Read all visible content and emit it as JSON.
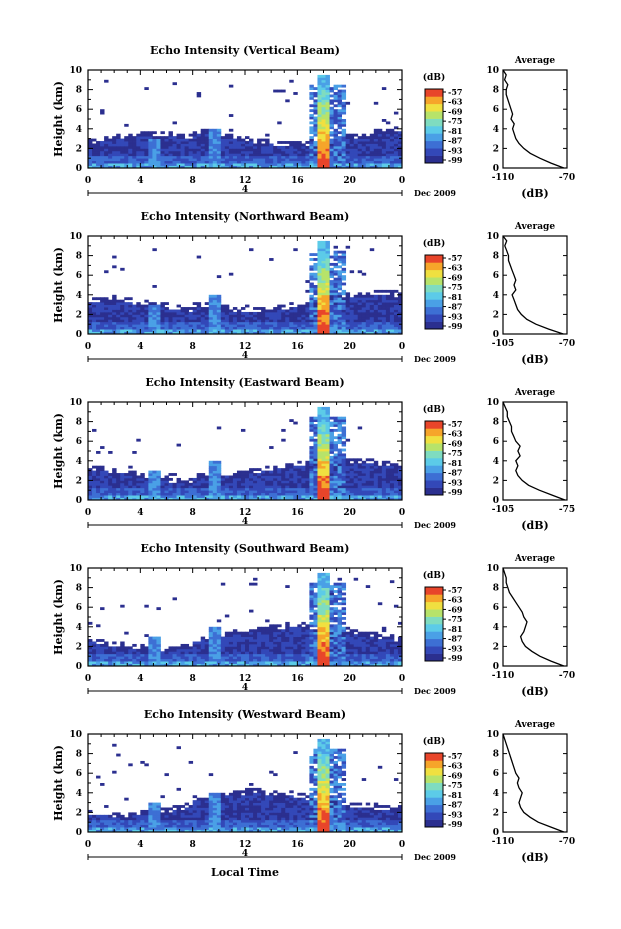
{
  "chart_data": [
    {
      "type": "heatmap",
      "title": "Echo Intensity (Vertical Beam)",
      "ylabel": "Height (km)",
      "xlabel": "",
      "x_ticks": [
        "0",
        "4",
        "8",
        "12",
        "16",
        "20",
        "0"
      ],
      "y_ticks": [
        "0",
        "2",
        "4",
        "6",
        "8",
        "10"
      ],
      "xlim": [
        0,
        24
      ],
      "ylim": [
        0,
        10
      ],
      "date_marker": "4",
      "date_label": "Dec 2009",
      "colorbar": {
        "unit": "(dB)",
        "ticks": [
          "-57",
          "-63",
          "-69",
          "-75",
          "-81",
          "-87",
          "-93",
          "-99"
        ]
      },
      "profile": {
        "title": "Average",
        "xlabel": "(dB)",
        "x_ticks": [
          "-110",
          "-70"
        ],
        "xlim": [
          -110,
          -70
        ],
        "y_ticks": [
          "0",
          "2",
          "4",
          "6",
          "8",
          "10"
        ],
        "heights": [
          0,
          0.5,
          1,
          1.5,
          2,
          2.5,
          3,
          3.5,
          4,
          4.5,
          5,
          5.5,
          6,
          6.5,
          7,
          7.5,
          8,
          8.5,
          9,
          9.5,
          10
        ],
        "values": [
          -72,
          -80,
          -87,
          -93,
          -97,
          -100,
          -102,
          -103,
          -104,
          -103,
          -105,
          -104,
          -105,
          -106,
          -107,
          -108,
          -108,
          -107,
          -109,
          -108,
          -110
        ]
      }
    },
    {
      "type": "heatmap",
      "title": "Echo Intensity (Northward Beam)",
      "ylabel": "Height (km)",
      "xlabel": "",
      "x_ticks": [
        "0",
        "4",
        "8",
        "12",
        "16",
        "20",
        "0"
      ],
      "y_ticks": [
        "0",
        "2",
        "4",
        "6",
        "8",
        "10"
      ],
      "xlim": [
        0,
        24
      ],
      "ylim": [
        0,
        10
      ],
      "date_marker": "4",
      "date_label": "Dec 2009",
      "colorbar": {
        "unit": "(dB)",
        "ticks": [
          "-57",
          "-63",
          "-69",
          "-75",
          "-81",
          "-87",
          "-93",
          "-99"
        ]
      },
      "profile": {
        "title": "Average",
        "xlabel": "(dB)",
        "x_ticks": [
          "-105",
          "-70"
        ],
        "xlim": [
          -105,
          -70
        ],
        "y_ticks": [
          "0",
          "2",
          "4",
          "6",
          "8",
          "10"
        ],
        "heights": [
          0,
          0.5,
          1,
          1.5,
          2,
          2.5,
          3,
          3.5,
          4,
          4.5,
          5,
          5.5,
          6,
          6.5,
          7,
          7.5,
          8,
          8.5,
          9,
          9.5,
          10
        ],
        "values": [
          -72,
          -80,
          -87,
          -92,
          -95,
          -97,
          -98,
          -99,
          -100,
          -98,
          -99,
          -98,
          -99,
          -100,
          -101,
          -102,
          -102,
          -103,
          -104,
          -103,
          -105
        ]
      }
    },
    {
      "type": "heatmap",
      "title": "Echo Intensity (Eastward Beam)",
      "ylabel": "Height (km)",
      "xlabel": "",
      "x_ticks": [
        "0",
        "4",
        "8",
        "12",
        "16",
        "20",
        "0"
      ],
      "y_ticks": [
        "0",
        "2",
        "4",
        "6",
        "8",
        "10"
      ],
      "xlim": [
        0,
        24
      ],
      "ylim": [
        0,
        10
      ],
      "date_marker": "4",
      "date_label": "Dec 2009",
      "colorbar": {
        "unit": "(dB)",
        "ticks": [
          "-57",
          "-63",
          "-69",
          "-75",
          "-81",
          "-87",
          "-93",
          "-99"
        ]
      },
      "profile": {
        "title": "Average",
        "xlabel": "(dB)",
        "x_ticks": [
          "-105",
          "-75"
        ],
        "xlim": [
          -105,
          -75
        ],
        "y_ticks": [
          "0",
          "2",
          "4",
          "6",
          "8",
          "10"
        ],
        "heights": [
          0,
          0.5,
          1,
          1.5,
          2,
          2.5,
          3,
          3.5,
          4,
          4.5,
          5,
          5.5,
          6,
          6.5,
          7,
          7.5,
          8,
          8.5,
          9,
          9.5,
          10
        ],
        "values": [
          -76,
          -82,
          -88,
          -93,
          -96,
          -98,
          -99,
          -98,
          -99,
          -97,
          -98,
          -97,
          -99,
          -100,
          -101,
          -101,
          -102,
          -103,
          -103,
          -104,
          -105
        ]
      }
    },
    {
      "type": "heatmap",
      "title": "Echo Intensity (Southward Beam)",
      "ylabel": "Height (km)",
      "xlabel": "",
      "x_ticks": [
        "0",
        "4",
        "8",
        "12",
        "16",
        "20",
        "0"
      ],
      "y_ticks": [
        "0",
        "2",
        "4",
        "6",
        "8",
        "10"
      ],
      "xlim": [
        0,
        24
      ],
      "ylim": [
        0,
        10
      ],
      "date_marker": "4",
      "date_label": "Dec 2009",
      "colorbar": {
        "unit": "(dB)",
        "ticks": [
          "-57",
          "-63",
          "-69",
          "-75",
          "-81",
          "-87",
          "-93",
          "-99"
        ]
      },
      "profile": {
        "title": "Average",
        "xlabel": "(dB)",
        "x_ticks": [
          "-110",
          "-70"
        ],
        "xlim": [
          -110,
          -70
        ],
        "y_ticks": [
          "0",
          "2",
          "4",
          "6",
          "8",
          "10"
        ],
        "heights": [
          0,
          0.5,
          1,
          1.5,
          2,
          2.5,
          3,
          3.5,
          4,
          4.5,
          5,
          5.5,
          6,
          6.5,
          7,
          7.5,
          8,
          8.5,
          9,
          9.5,
          10
        ],
        "values": [
          -72,
          -80,
          -87,
          -92,
          -96,
          -98,
          -99,
          -97,
          -96,
          -95,
          -97,
          -98,
          -100,
          -102,
          -104,
          -106,
          -107,
          -108,
          -108,
          -109,
          -110
        ]
      }
    },
    {
      "type": "heatmap",
      "title": "Echo Intensity (Westward Beam)",
      "ylabel": "Height (km)",
      "xlabel": "Local Time",
      "x_ticks": [
        "0",
        "4",
        "8",
        "12",
        "16",
        "20",
        "0"
      ],
      "y_ticks": [
        "0",
        "2",
        "4",
        "6",
        "8",
        "10"
      ],
      "xlim": [
        0,
        24
      ],
      "ylim": [
        0,
        10
      ],
      "date_marker": "4",
      "date_label": "Dec 2009",
      "colorbar": {
        "unit": "(dB)",
        "ticks": [
          "-57",
          "-63",
          "-69",
          "-75",
          "-81",
          "-87",
          "-93",
          "-99"
        ]
      },
      "profile": {
        "title": "Average",
        "xlabel": "(dB)",
        "x_ticks": [
          "-110",
          "-70"
        ],
        "xlim": [
          -110,
          -70
        ],
        "y_ticks": [
          "0",
          "2",
          "4",
          "6",
          "8",
          "10"
        ],
        "heights": [
          0,
          0.5,
          1,
          1.5,
          2,
          2.5,
          3,
          3.5,
          4,
          4.5,
          5,
          5.5,
          6,
          6.5,
          7,
          7.5,
          8,
          8.5,
          9,
          9.5,
          10
        ],
        "values": [
          -72,
          -80,
          -88,
          -93,
          -97,
          -99,
          -100,
          -99,
          -98,
          -100,
          -101,
          -100,
          -102,
          -103,
          -104,
          -105,
          -106,
          -107,
          -108,
          -109,
          -110
        ]
      }
    }
  ],
  "colormap": [
    "#2b2f8f",
    "#3348b8",
    "#3d6fd4",
    "#4aa0e6",
    "#5ccbe8",
    "#7fdcc0",
    "#b7e36a",
    "#f0e040",
    "#f6a52a",
    "#e8452a"
  ]
}
